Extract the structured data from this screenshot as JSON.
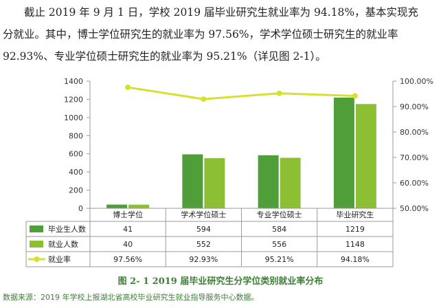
{
  "paragraph": {
    "line1": "截止 2019 年 9 月 1 日，学校 2019 届毕业研究生就业率为 94.18%，基本实现充",
    "line2": "分就业。其中，博士学位研究生的就业率为 97.56%，学术学位硕士研究生的就业率",
    "line3": "92.93%、专业学位硕士研究生的就业率为 95.21%（详见图 2-1）。"
  },
  "chart_data": {
    "type": "bar",
    "categories": [
      "博士学位",
      "学术学位硕士",
      "专业学位硕士",
      "毕业研究生"
    ],
    "series": [
      {
        "name": "毕业生人数",
        "values": [
          41,
          594,
          584,
          1219
        ],
        "color": "#4f9e3a",
        "kind": "bar"
      },
      {
        "name": "就业人数",
        "values": [
          40,
          552,
          556,
          1148
        ],
        "color": "#8dbf35",
        "kind": "bar"
      },
      {
        "name": "就业率",
        "values": [
          97.56,
          92.93,
          95.21,
          94.18
        ],
        "color": "#d7e02c",
        "kind": "line",
        "axis": "right"
      }
    ],
    "table_rows": [
      [
        "41",
        "594",
        "584",
        "1219"
      ],
      [
        "40",
        "552",
        "556",
        "1148"
      ],
      [
        "97.56%",
        "92.93%",
        "95.21%",
        "94.18%"
      ]
    ],
    "ylim": [
      0,
      1400
    ],
    "yticks": [
      "0",
      "200",
      "400",
      "600",
      "800",
      "1000",
      "1200",
      "1400"
    ],
    "y2lim": [
      50,
      100
    ],
    "y2ticks": [
      "50.00%",
      "60.00%",
      "70.00%",
      "80.00%",
      "90.00%",
      "100.00%"
    ],
    "grid": false,
    "legend": "table-left",
    "accent_color": "#3d7f36"
  },
  "caption": "图 2- 1    2019 届毕业研究生分学位类别就业率分布",
  "source": "数据来源：2019 年学校上报湖北省高校毕业研究生就业指导服务中心数据。"
}
